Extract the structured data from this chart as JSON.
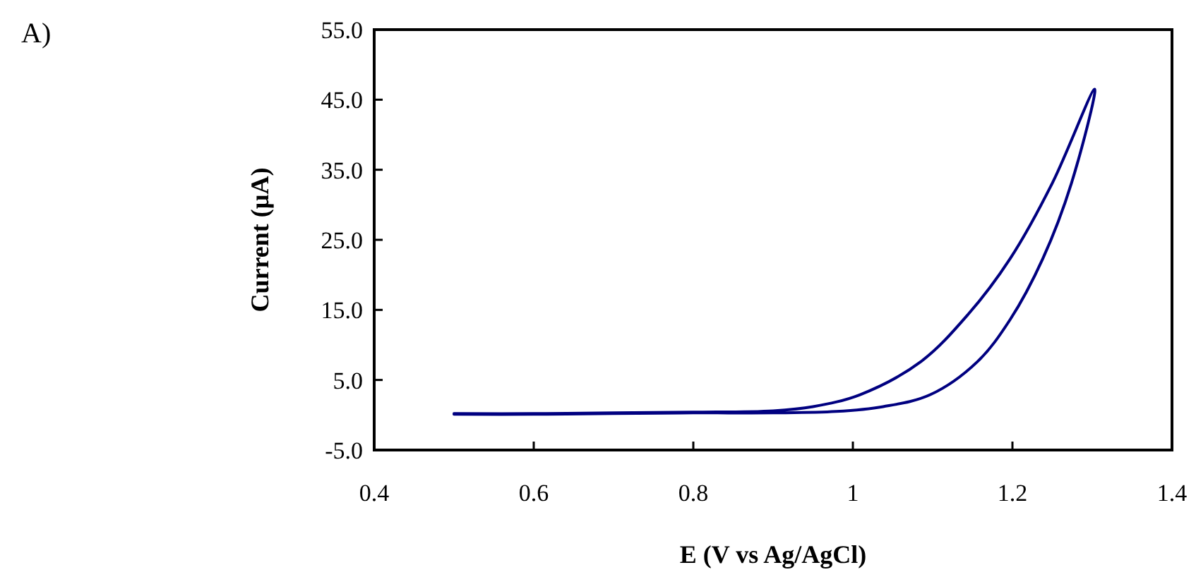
{
  "chart_data": {
    "type": "line",
    "xlabel": "E (V vs Ag/AgCl)",
    "ylabel": "Current (µA)",
    "annotations": [
      "A)"
    ],
    "series": [
      {
        "color": "#000080",
        "x": [
          0.5,
          0.6,
          0.7,
          0.8,
          0.9,
          0.979,
          1.038,
          1.097,
          1.156,
          1.197,
          1.238,
          1.274,
          1.303,
          1.25,
          1.197,
          1.144,
          1.085,
          1.009,
          0.95,
          0.9,
          0.8,
          0.7,
          0.6,
          0.5
        ],
        "values": [
          0.1,
          0.1,
          0.2,
          0.3,
          0.3,
          0.5,
          1.2,
          2.9,
          7.6,
          13.6,
          22.3,
          33.1,
          46.5,
          33.1,
          22.3,
          14.3,
          7.6,
          2.9,
          1.2,
          0.6,
          0.4,
          0.3,
          0.2,
          0.2
        ]
      }
    ],
    "xlim": [
      0.4,
      1.4
    ],
    "xticks": [
      0.4,
      0.6,
      0.8,
      1,
      1.2,
      1.4
    ],
    "ylim": [
      -5,
      55
    ],
    "yticks": [
      {
        "value": -5,
        "label": "-5.0"
      },
      {
        "value": 5,
        "label": "5.0"
      },
      {
        "value": 15,
        "label": "15.0"
      },
      {
        "value": 25,
        "label": "25.0"
      },
      {
        "value": 35,
        "label": "35.0"
      },
      {
        "value": 45,
        "label": "45.0"
      },
      {
        "value": 55,
        "label": "55.0"
      }
    ],
    "grid": false,
    "marker": "none",
    "line_style": "solid"
  }
}
